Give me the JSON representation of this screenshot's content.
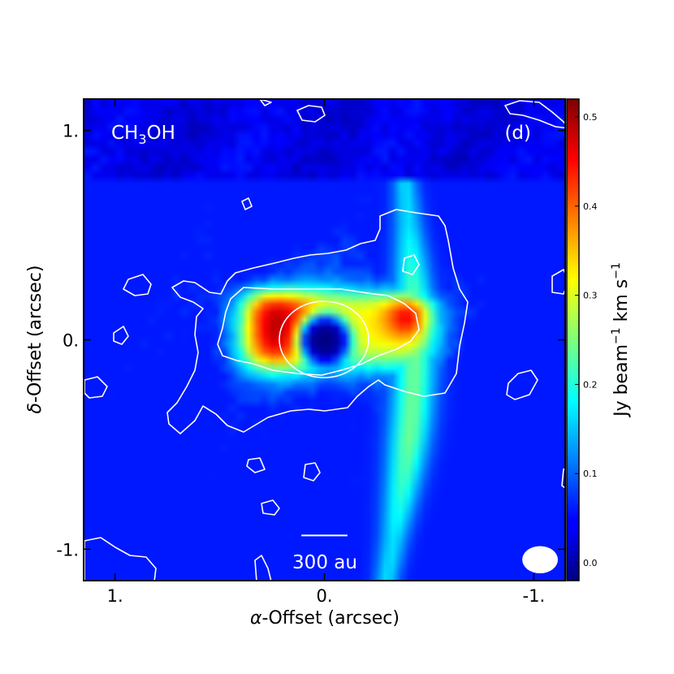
{
  "chart_data": {
    "type": "heatmap",
    "species_label": {
      "main": "CH",
      "sub": "3",
      "tail": "OH"
    },
    "panel_label": "(d)",
    "xlabel": {
      "symbol": "α",
      "text": "-Offset (arcsec)"
    },
    "ylabel": {
      "symbol": "δ",
      "text": "-Offset (arcsec)"
    },
    "x_range": [
      1.15,
      -1.15
    ],
    "y_range": [
      -1.15,
      1.15
    ],
    "x_ticks": [
      {
        "value": 1.0,
        "label": "1."
      },
      {
        "value": 0.0,
        "label": "0."
      },
      {
        "value": -1.0,
        "label": "-1."
      }
    ],
    "y_ticks": [
      {
        "value": 1.0,
        "label": "1."
      },
      {
        "value": 0.0,
        "label": "0."
      },
      {
        "value": -1.0,
        "label": "-1."
      }
    ],
    "colorbar": {
      "label_main": "Jy beam",
      "label_exp1": "−1",
      "label_mid": " km s",
      "label_exp2": "−1",
      "range": [
        -0.02,
        0.52
      ],
      "ticks": [
        {
          "value": 0.0,
          "label": "0.0"
        },
        {
          "value": 0.1,
          "label": "0.1"
        },
        {
          "value": 0.2,
          "label": "0.2"
        },
        {
          "value": 0.3,
          "label": "0.3"
        },
        {
          "value": 0.4,
          "label": "0.4"
        },
        {
          "value": 0.5,
          "label": "0.5"
        }
      ],
      "colormap": "jet"
    },
    "scale_bar": {
      "label": "300 au",
      "length_arcsec": 0.22,
      "center": [
        0.0,
        -1.0
      ]
    },
    "beam": {
      "center": [
        -1.03,
        -1.05
      ],
      "major_arcsec": 0.17,
      "minor_arcsec": 0.13
    },
    "contour_color": "#ffffff",
    "components": [
      {
        "name": "rectangular band",
        "x_range": [
          0.38,
          -0.5
        ],
        "y_range": [
          -0.12,
          0.22
        ],
        "peak": 0.52
      },
      {
        "name": "central hole",
        "center": [
          0.0,
          0.0
        ],
        "radius": 0.12,
        "value": -0.02
      },
      {
        "name": "streamer",
        "x_from": -0.4,
        "x_to": -0.33,
        "y_from": 0.55,
        "y_to": -0.95,
        "peak": 0.22
      },
      {
        "name": "broad envelope",
        "center": [
          0.0,
          0.05
        ],
        "peak": 0.08
      }
    ]
  }
}
